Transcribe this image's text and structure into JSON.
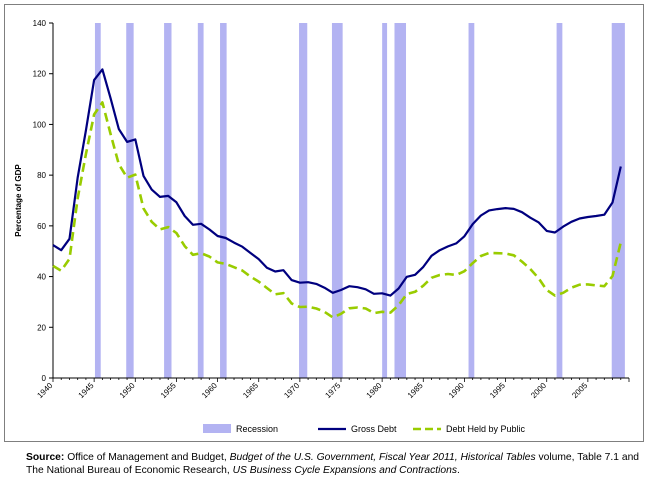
{
  "chart_data": {
    "type": "line",
    "title": "",
    "xlabel": "",
    "ylabel": "Percentage of GDP",
    "xlim": [
      1940,
      2010
    ],
    "ylim": [
      0,
      140
    ],
    "x_ticks": [
      "1940",
      "1945",
      "1950",
      "1955",
      "1960",
      "1965",
      "1970",
      "1975",
      "1980",
      "1985",
      "1990",
      "1995",
      "2000",
      "2005"
    ],
    "y_ticks": [
      "0",
      "20",
      "40",
      "60",
      "80",
      "100",
      "120",
      "140"
    ],
    "grid": false,
    "legend_position": "bottom",
    "recessions": [
      {
        "start": 1945.1,
        "end": 1945.8
      },
      {
        "start": 1948.9,
        "end": 1949.8
      },
      {
        "start": 1953.5,
        "end": 1954.4
      },
      {
        "start": 1957.6,
        "end": 1958.3
      },
      {
        "start": 1960.3,
        "end": 1961.1
      },
      {
        "start": 1969.9,
        "end": 1970.9
      },
      {
        "start": 1973.9,
        "end": 1975.2
      },
      {
        "start": 1980.0,
        "end": 1980.6
      },
      {
        "start": 1981.5,
        "end": 1982.9
      },
      {
        "start": 1990.5,
        "end": 1991.2
      },
      {
        "start": 2001.2,
        "end": 2001.9
      },
      {
        "start": 2007.9,
        "end": 2009.5
      }
    ],
    "series": [
      {
        "name": "Gross Debt",
        "style": "solid",
        "color": "#00007f",
        "x": [
          1940,
          1941,
          1942,
          1943,
          1944,
          1945,
          1946,
          1947,
          1948,
          1949,
          1950,
          1951,
          1952,
          1953,
          1954,
          1955,
          1956,
          1957,
          1958,
          1959,
          1960,
          1961,
          1962,
          1963,
          1964,
          1965,
          1966,
          1967,
          1968,
          1969,
          1970,
          1971,
          1972,
          1973,
          1974,
          1975,
          1976,
          1977,
          1978,
          1979,
          1980,
          1981,
          1982,
          1983,
          1984,
          1985,
          1986,
          1987,
          1988,
          1989,
          1990,
          1991,
          1992,
          1993,
          1994,
          1995,
          1996,
          1997,
          1998,
          1999,
          2000,
          2001,
          2002,
          2003,
          2004,
          2005,
          2006,
          2007,
          2008,
          2009
        ],
        "values": [
          52.4,
          50.4,
          54.9,
          79.1,
          97.6,
          117.5,
          121.7,
          110.3,
          98.2,
          93.1,
          94.1,
          79.7,
          74.3,
          71.4,
          71.8,
          69.3,
          63.9,
          60.4,
          60.8,
          58.6,
          56.0,
          55.2,
          53.4,
          51.8,
          49.3,
          46.9,
          43.5,
          42.0,
          42.5,
          38.6,
          37.6,
          37.8,
          37.1,
          35.6,
          33.6,
          34.7,
          36.2,
          35.8,
          35.0,
          33.2,
          33.4,
          32.5,
          35.3,
          39.9,
          40.7,
          43.8,
          48.2,
          50.4,
          51.9,
          53.1,
          55.9,
          60.7,
          64.1,
          66.1,
          66.6,
          67.0,
          66.7,
          65.4,
          63.2,
          61.4,
          58.0,
          57.4,
          59.7,
          61.6,
          62.9,
          63.5,
          63.9,
          64.4,
          69.2,
          83.4
        ]
      },
      {
        "name": "Debt Held by Public",
        "style": "dashed",
        "color": "#99cc00",
        "x": [
          1940,
          1941,
          1942,
          1943,
          1944,
          1945,
          1946,
          1947,
          1948,
          1949,
          1950,
          1951,
          1952,
          1953,
          1954,
          1955,
          1956,
          1957,
          1958,
          1959,
          1960,
          1961,
          1962,
          1963,
          1964,
          1965,
          1966,
          1967,
          1968,
          1969,
          1970,
          1971,
          1972,
          1973,
          1974,
          1975,
          1976,
          1977,
          1978,
          1979,
          1980,
          1981,
          1982,
          1983,
          1984,
          1985,
          1986,
          1987,
          1988,
          1989,
          1990,
          1991,
          1992,
          1993,
          1994,
          1995,
          1996,
          1997,
          1998,
          1999,
          2000,
          2001,
          2002,
          2003,
          2004,
          2005,
          2006,
          2007,
          2008,
          2009
        ],
        "values": [
          44.2,
          42.3,
          47.0,
          70.9,
          88.3,
          103.9,
          108.7,
          96.2,
          84.3,
          79.0,
          80.2,
          66.9,
          61.6,
          58.6,
          59.5,
          57.2,
          52.0,
          48.6,
          49.2,
          47.9,
          45.6,
          45.0,
          43.7,
          42.4,
          40.0,
          38.0,
          35.5,
          33.0,
          33.5,
          29.4,
          28.0,
          28.1,
          27.4,
          26.1,
          23.9,
          25.3,
          27.5,
          27.8,
          27.4,
          25.6,
          26.1,
          25.8,
          28.7,
          33.1,
          34.0,
          36.4,
          39.5,
          40.6,
          41.0,
          40.6,
          42.1,
          45.3,
          48.1,
          49.3,
          49.2,
          49.1,
          48.4,
          45.9,
          43.0,
          39.4,
          34.7,
          32.5,
          33.6,
          35.6,
          36.8,
          36.9,
          36.5,
          36.2,
          40.2,
          53.5
        ]
      }
    ],
    "legend": [
      {
        "label": "Recession",
        "kind": "box",
        "color": "#b3b3f2"
      },
      {
        "label": "Gross Debt",
        "kind": "solid",
        "color": "#00007f"
      },
      {
        "label": "Debt Held by Public",
        "kind": "dashed",
        "color": "#99cc00"
      }
    ]
  },
  "source": {
    "label": "Source:",
    "text_1": " Office of Management and Budget, ",
    "italic_1": "Budget of the U.S. Government, Fiscal Year 2011, Historical Tables",
    "text_2": " volume, Table 7.1 and The National Bureau of Economic Research, ",
    "italic_2": "US Business Cycle Expansions and Contractions",
    "text_3": "."
  }
}
